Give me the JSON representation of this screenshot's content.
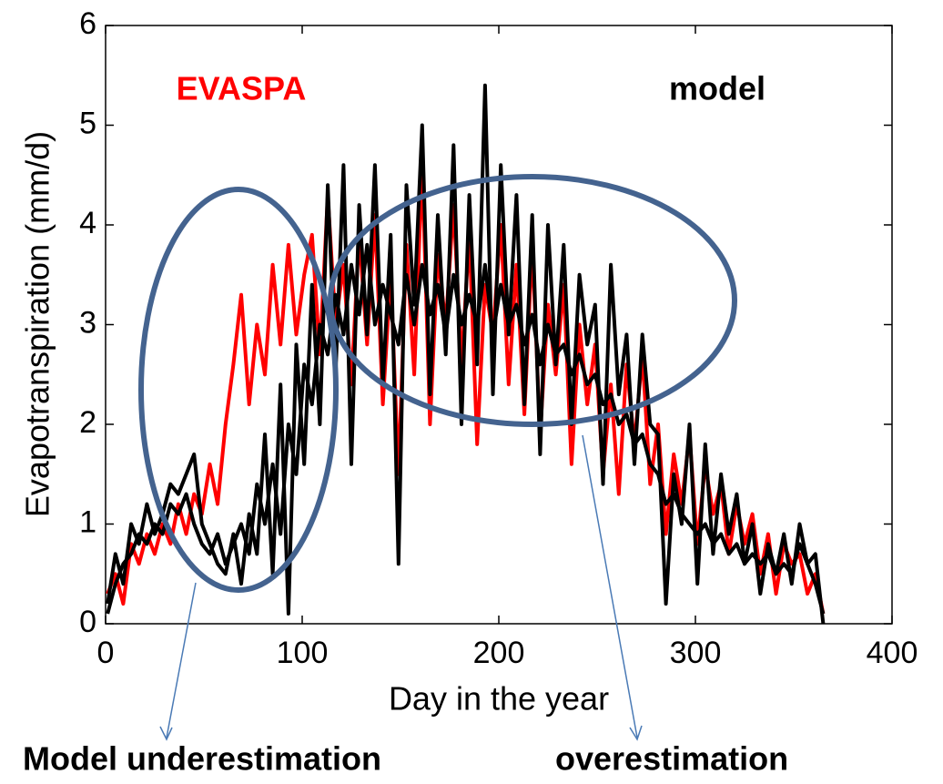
{
  "chart_data": {
    "type": "line",
    "xlabel": "Day in the year",
    "ylabel": "Evapotranspiration (mm/d)",
    "annotations": [
      "Model underestimation",
      "overestimation"
    ],
    "xlim": [
      0,
      400
    ],
    "xticks": [
      0,
      100,
      200,
      300,
      400
    ],
    "ylim": [
      0,
      6
    ],
    "yticks": [
      0,
      1,
      2,
      3,
      4,
      5,
      6
    ],
    "grid": false,
    "x": [
      1,
      5,
      9,
      13,
      17,
      21,
      25,
      29,
      33,
      37,
      41,
      45,
      49,
      53,
      57,
      61,
      65,
      69,
      73,
      77,
      81,
      85,
      89,
      93,
      97,
      101,
      105,
      109,
      113,
      117,
      121,
      125,
      129,
      133,
      137,
      141,
      145,
      149,
      153,
      157,
      161,
      165,
      169,
      173,
      177,
      181,
      185,
      189,
      193,
      197,
      201,
      205,
      209,
      213,
      217,
      221,
      225,
      229,
      233,
      237,
      241,
      245,
      249,
      253,
      257,
      261,
      265,
      269,
      273,
      277,
      281,
      285,
      289,
      293,
      297,
      301,
      305,
      309,
      313,
      317,
      321,
      325,
      329,
      333,
      337,
      341,
      345,
      349,
      353,
      357,
      361,
      365
    ],
    "series": [
      {
        "name": "EVASPA",
        "color": "#ff0000",
        "values": [
          0.3,
          0.5,
          0.2,
          0.8,
          0.6,
          0.9,
          0.7,
          1.0,
          0.8,
          1.2,
          0.9,
          1.3,
          1.1,
          1.6,
          1.2,
          2.0,
          2.6,
          3.3,
          2.2,
          3.0,
          2.5,
          3.6,
          2.8,
          3.8,
          2.9,
          3.5,
          3.9,
          2.7,
          4.3,
          3.0,
          3.6,
          2.4,
          3.9,
          2.8,
          4.1,
          2.2,
          3.5,
          1.5,
          3.8,
          2.5,
          4.6,
          2.0,
          3.7,
          3.0,
          4.2,
          2.6,
          3.9,
          1.8,
          3.4,
          2.9,
          4.0,
          2.4,
          3.6,
          2.1,
          3.8,
          1.9,
          3.2,
          2.5,
          3.4,
          1.6,
          3.0,
          2.2,
          2.8,
          1.5,
          2.4,
          1.3,
          2.6,
          1.8,
          2.7,
          1.4,
          2.0,
          0.9,
          1.7,
          1.2,
          1.9,
          0.8,
          1.6,
          1.1,
          1.4,
          0.7,
          1.2,
          0.8,
          1.1,
          0.5,
          0.9,
          0.3,
          0.8,
          0.6,
          0.7,
          0.3,
          0.5,
          0.1
        ]
      },
      {
        "name": "model",
        "color": "#000000",
        "values": [
          0.2,
          0.7,
          0.4,
          1.0,
          0.8,
          1.2,
          0.9,
          1.1,
          1.4,
          1.3,
          1.5,
          1.7,
          1.0,
          0.8,
          0.6,
          0.5,
          0.9,
          0.4,
          1.1,
          0.7,
          1.9,
          0.5,
          2.4,
          0.1,
          2.8,
          1.6,
          3.4,
          2.0,
          4.4,
          2.5,
          4.6,
          1.6,
          4.2,
          2.9,
          4.6,
          2.4,
          3.9,
          0.6,
          4.4,
          3.2,
          5.0,
          2.3,
          4.1,
          2.7,
          4.8,
          2.0,
          4.3,
          2.6,
          5.4,
          2.3,
          4.6,
          2.9,
          4.3,
          2.2,
          4.1,
          1.7,
          4.0,
          2.6,
          3.8,
          2.0,
          3.5,
          2.8,
          3.2,
          1.4,
          3.6,
          2.3,
          2.9,
          1.6,
          2.9,
          2.0,
          1.9,
          0.2,
          1.5,
          1.0,
          2.0,
          0.4,
          1.8,
          0.7,
          1.5,
          0.9,
          1.3,
          0.6,
          1.0,
          0.3,
          0.8,
          0.5,
          0.9,
          0.4,
          1.0,
          0.6,
          0.7,
          0.0
        ]
      },
      {
        "color": "#000000",
        "values": [
          0.1,
          0.4,
          0.6,
          0.7,
          0.9,
          0.8,
          1.0,
          0.9,
          1.2,
          1.1,
          1.3,
          1.0,
          0.8,
          0.7,
          0.9,
          0.6,
          0.8,
          1.0,
          0.7,
          1.4,
          1.0,
          1.6,
          0.9,
          2.0,
          1.5,
          2.6,
          2.2,
          3.0,
          2.7,
          3.3,
          2.9,
          3.6,
          3.1,
          3.8,
          3.0,
          3.4,
          3.1,
          2.8,
          3.5,
          3.0,
          3.6,
          3.1,
          3.4,
          2.9,
          3.5,
          3.0,
          3.3,
          3.0,
          3.6,
          2.9,
          3.4,
          3.0,
          3.2,
          2.8,
          3.1,
          2.6,
          3.0,
          2.7,
          2.8,
          2.5,
          2.7,
          2.4,
          2.5,
          2.2,
          2.3,
          2.0,
          2.1,
          1.8,
          1.9,
          1.6,
          1.5,
          1.2,
          1.3,
          1.1,
          1.0,
          0.9,
          1.0,
          0.8,
          0.9,
          0.7,
          0.8,
          0.6,
          0.7,
          0.6,
          0.7,
          0.5,
          0.6,
          0.5,
          0.8,
          0.6,
          0.4,
          0.1
        ]
      }
    ]
  }
}
